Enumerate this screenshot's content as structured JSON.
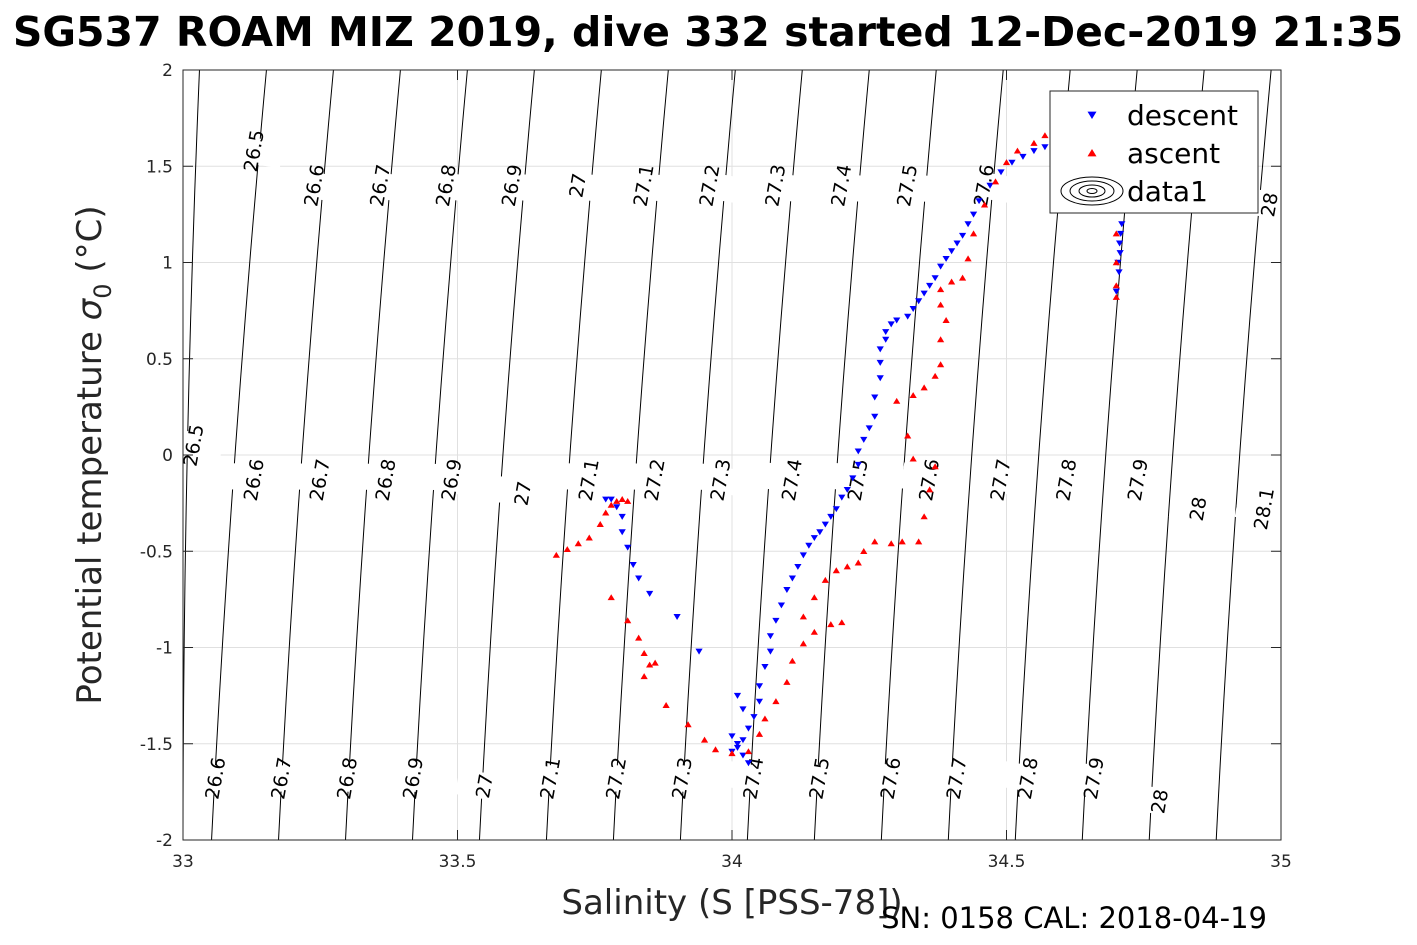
{
  "chart_data": {
    "type": "scatter",
    "title": "SG537 ROAM MIZ 2019, dive 332 started 12-Dec-2019 21:35",
    "xlabel": "Salinity (S [PSS-78])",
    "ylabel_main": "Potential temperature ",
    "ylabel_sigma": "σ",
    "ylabel_sub": "0",
    "ylabel_unit": " (°C)",
    "xlim": [
      33,
      35
    ],
    "ylim": [
      -2,
      2
    ],
    "xticks": [
      33,
      33.5,
      34,
      34.5,
      35
    ],
    "xtick_labels": [
      "33",
      "33.5",
      "34",
      "34.5",
      "35"
    ],
    "yticks": [
      -2,
      -1.5,
      -1,
      -0.5,
      0,
      0.5,
      1,
      1.5,
      2
    ],
    "ytick_labels": [
      "-2",
      "-1.5",
      "-1",
      "-0.5",
      "0",
      "0.5",
      "1",
      "1.5",
      "2"
    ],
    "grid": true,
    "legend_position": "top-right",
    "footer": "SN: 0158  CAL: 2018-04-19",
    "colors": {
      "descent": "#0000ff",
      "ascent": "#ff0000",
      "isopycnal": "#000000",
      "grid": "#e0e0e0"
    },
    "legend": [
      {
        "label": "descent",
        "marker": "triangle-down",
        "color": "#0000ff"
      },
      {
        "label": "ascent",
        "marker": "triangle-up",
        "color": "#ff0000"
      },
      {
        "label": "data1",
        "marker": "contour-icon",
        "color": "#000000"
      }
    ],
    "isopycnals": [
      {
        "sigma": 26.5,
        "x_at_top": 33.03,
        "x_at_bottom": 33.0
      },
      {
        "sigma": 26.6,
        "x_at_top": 33.152,
        "x_at_bottom": 33.052
      },
      {
        "sigma": 26.7,
        "x_at_top": 33.274,
        "x_at_bottom": 33.174
      },
      {
        "sigma": 26.8,
        "x_at_top": 33.396,
        "x_at_bottom": 33.296
      },
      {
        "sigma": 26.9,
        "x_at_top": 33.518,
        "x_at_bottom": 33.418
      },
      {
        "sigma": 27.0,
        "x_at_top": 33.64,
        "x_at_bottom": 33.54
      },
      {
        "sigma": 27.1,
        "x_at_top": 33.762,
        "x_at_bottom": 33.662
      },
      {
        "sigma": 27.2,
        "x_at_top": 33.884,
        "x_at_bottom": 33.784
      },
      {
        "sigma": 27.3,
        "x_at_top": 34.006,
        "x_at_bottom": 33.906
      },
      {
        "sigma": 27.4,
        "x_at_top": 34.128,
        "x_at_bottom": 34.028
      },
      {
        "sigma": 27.5,
        "x_at_top": 34.25,
        "x_at_bottom": 34.15
      },
      {
        "sigma": 27.6,
        "x_at_top": 34.372,
        "x_at_bottom": 34.272
      },
      {
        "sigma": 27.7,
        "x_at_top": 34.494,
        "x_at_bottom": 34.394
      },
      {
        "sigma": 27.8,
        "x_at_top": 34.616,
        "x_at_bottom": 34.516
      },
      {
        "sigma": 27.9,
        "x_at_top": 34.738,
        "x_at_bottom": 34.638
      },
      {
        "sigma": 28.0,
        "x_at_top": 34.86,
        "x_at_bottom": 34.76
      },
      {
        "sigma": 28.1,
        "x_at_top": 34.982,
        "x_at_bottom": 34.882
      }
    ],
    "isopycnal_labels": [
      {
        "text": "26.5",
        "x": 33.13,
        "y": 1.58
      },
      {
        "text": "26.6",
        "x": 33.24,
        "y": 1.4
      },
      {
        "text": "26.7",
        "x": 33.36,
        "y": 1.4
      },
      {
        "text": "26.8",
        "x": 33.48,
        "y": 1.4
      },
      {
        "text": "26.9",
        "x": 33.6,
        "y": 1.4
      },
      {
        "text": "27",
        "x": 33.72,
        "y": 1.4
      },
      {
        "text": "27.1",
        "x": 33.84,
        "y": 1.4
      },
      {
        "text": "27.2",
        "x": 33.96,
        "y": 1.4
      },
      {
        "text": "27.3",
        "x": 34.08,
        "y": 1.4
      },
      {
        "text": "27.4",
        "x": 34.2,
        "y": 1.4
      },
      {
        "text": "27.5",
        "x": 34.32,
        "y": 1.4
      },
      {
        "text": "27.6",
        "x": 34.46,
        "y": 1.4
      },
      {
        "text": "28",
        "x": 34.98,
        "y": 1.3
      },
      {
        "text": "26.5",
        "x": 33.02,
        "y": 0.05
      },
      {
        "text": "26.6",
        "x": 33.13,
        "y": -0.13
      },
      {
        "text": "26.7",
        "x": 33.25,
        "y": -0.13
      },
      {
        "text": "26.8",
        "x": 33.37,
        "y": -0.13
      },
      {
        "text": "26.9",
        "x": 33.49,
        "y": -0.13
      },
      {
        "text": "27",
        "x": 33.62,
        "y": -0.2
      },
      {
        "text": "27.1",
        "x": 33.74,
        "y": -0.13
      },
      {
        "text": "27.2",
        "x": 33.86,
        "y": -0.13
      },
      {
        "text": "27.3",
        "x": 33.98,
        "y": -0.13
      },
      {
        "text": "27.4",
        "x": 34.11,
        "y": -0.13
      },
      {
        "text": "27.5",
        "x": 34.23,
        "y": -0.13
      },
      {
        "text": "27.6",
        "x": 34.36,
        "y": -0.13
      },
      {
        "text": "27.7",
        "x": 34.49,
        "y": -0.13
      },
      {
        "text": "27.8",
        "x": 34.61,
        "y": -0.13
      },
      {
        "text": "27.9",
        "x": 34.74,
        "y": -0.13
      },
      {
        "text": "28",
        "x": 34.85,
        "y": -0.28
      },
      {
        "text": "28.1",
        "x": 34.97,
        "y": -0.28
      },
      {
        "text": "26.6",
        "x": 33.06,
        "y": -1.68
      },
      {
        "text": "26.7",
        "x": 33.18,
        "y": -1.68
      },
      {
        "text": "26.8",
        "x": 33.3,
        "y": -1.68
      },
      {
        "text": "26.9",
        "x": 33.42,
        "y": -1.68
      },
      {
        "text": "27",
        "x": 33.55,
        "y": -1.72
      },
      {
        "text": "27.1",
        "x": 33.67,
        "y": -1.68
      },
      {
        "text": "27.2",
        "x": 33.79,
        "y": -1.68
      },
      {
        "text": "27.3",
        "x": 33.91,
        "y": -1.68
      },
      {
        "text": "27.4",
        "x": 34.04,
        "y": -1.68
      },
      {
        "text": "27.5",
        "x": 34.16,
        "y": -1.68
      },
      {
        "text": "27.6",
        "x": 34.29,
        "y": -1.68
      },
      {
        "text": "27.7",
        "x": 34.41,
        "y": -1.68
      },
      {
        "text": "27.8",
        "x": 34.54,
        "y": -1.68
      },
      {
        "text": "27.9",
        "x": 34.66,
        "y": -1.68
      },
      {
        "text": "28",
        "x": 34.78,
        "y": -1.8
      }
    ],
    "series": [
      {
        "name": "descent",
        "marker": "triangle-down",
        "color": "#0000ff",
        "points": [
          [
            34.7,
            0.85
          ],
          [
            34.705,
            0.95
          ],
          [
            34.707,
            1.05
          ],
          [
            34.708,
            1.15
          ],
          [
            34.71,
            1.2
          ],
          [
            34.706,
            1.1
          ],
          [
            34.703,
            1.0
          ],
          [
            34.59,
            1.58
          ],
          [
            34.57,
            1.6
          ],
          [
            34.55,
            1.58
          ],
          [
            34.53,
            1.55
          ],
          [
            34.51,
            1.52
          ],
          [
            34.49,
            1.47
          ],
          [
            34.47,
            1.4
          ],
          [
            34.45,
            1.32
          ],
          [
            34.44,
            1.25
          ],
          [
            34.43,
            1.2
          ],
          [
            34.42,
            1.14
          ],
          [
            34.41,
            1.1
          ],
          [
            34.4,
            1.06
          ],
          [
            34.39,
            1.02
          ],
          [
            34.38,
            0.98
          ],
          [
            34.37,
            0.92
          ],
          [
            34.36,
            0.88
          ],
          [
            34.35,
            0.84
          ],
          [
            34.34,
            0.8
          ],
          [
            34.33,
            0.76
          ],
          [
            34.32,
            0.72
          ],
          [
            34.3,
            0.7
          ],
          [
            34.29,
            0.68
          ],
          [
            34.28,
            0.64
          ],
          [
            34.28,
            0.6
          ],
          [
            34.27,
            0.55
          ],
          [
            34.27,
            0.48
          ],
          [
            34.27,
            0.4
          ],
          [
            34.26,
            0.3
          ],
          [
            34.26,
            0.2
          ],
          [
            34.25,
            0.14
          ],
          [
            34.24,
            0.08
          ],
          [
            34.23,
            0.02
          ],
          [
            34.23,
            -0.05
          ],
          [
            34.22,
            -0.12
          ],
          [
            34.21,
            -0.18
          ],
          [
            34.2,
            -0.22
          ],
          [
            34.19,
            -0.28
          ],
          [
            34.18,
            -0.32
          ],
          [
            34.17,
            -0.36
          ],
          [
            34.16,
            -0.4
          ],
          [
            34.15,
            -0.43
          ],
          [
            34.14,
            -0.47
          ],
          [
            34.13,
            -0.52
          ],
          [
            34.12,
            -0.58
          ],
          [
            34.11,
            -0.64
          ],
          [
            34.1,
            -0.7
          ],
          [
            34.09,
            -0.78
          ],
          [
            34.08,
            -0.86
          ],
          [
            34.07,
            -0.94
          ],
          [
            34.07,
            -1.02
          ],
          [
            34.06,
            -1.1
          ],
          [
            34.05,
            -1.2
          ],
          [
            34.05,
            -1.28
          ],
          [
            34.04,
            -1.36
          ],
          [
            34.03,
            -1.42
          ],
          [
            34.02,
            -1.48
          ],
          [
            34.01,
            -1.52
          ],
          [
            34.0,
            -1.54
          ],
          [
            34.02,
            -1.56
          ],
          [
            34.03,
            -1.6
          ],
          [
            34.01,
            -1.5
          ],
          [
            34.0,
            -1.46
          ],
          [
            34.02,
            -1.32
          ],
          [
            34.01,
            -1.25
          ],
          [
            33.94,
            -1.02
          ],
          [
            33.9,
            -0.84
          ],
          [
            33.85,
            -0.72
          ],
          [
            33.83,
            -0.64
          ],
          [
            33.82,
            -0.57
          ],
          [
            33.81,
            -0.48
          ],
          [
            33.8,
            -0.4
          ],
          [
            33.8,
            -0.32
          ],
          [
            33.79,
            -0.27
          ],
          [
            33.78,
            -0.23
          ],
          [
            33.77,
            -0.23
          ]
        ]
      },
      {
        "name": "ascent",
        "marker": "triangle-up",
        "color": "#ff0000",
        "points": [
          [
            33.68,
            -0.52
          ],
          [
            33.7,
            -0.49
          ],
          [
            33.72,
            -0.46
          ],
          [
            33.74,
            -0.43
          ],
          [
            33.76,
            -0.36
          ],
          [
            33.77,
            -0.3
          ],
          [
            33.78,
            -0.26
          ],
          [
            33.79,
            -0.24
          ],
          [
            33.8,
            -0.23
          ],
          [
            33.81,
            -0.24
          ],
          [
            33.78,
            -0.74
          ],
          [
            33.81,
            -0.86
          ],
          [
            33.83,
            -0.95
          ],
          [
            33.84,
            -1.03
          ],
          [
            33.85,
            -1.09
          ],
          [
            33.86,
            -1.08
          ],
          [
            33.84,
            -1.15
          ],
          [
            33.88,
            -1.3
          ],
          [
            33.92,
            -1.4
          ],
          [
            33.95,
            -1.48
          ],
          [
            33.97,
            -1.53
          ],
          [
            34.0,
            -1.55
          ],
          [
            34.03,
            -1.54
          ],
          [
            34.05,
            -1.45
          ],
          [
            34.06,
            -1.37
          ],
          [
            34.08,
            -1.28
          ],
          [
            34.1,
            -1.18
          ],
          [
            34.11,
            -1.07
          ],
          [
            34.13,
            -0.98
          ],
          [
            34.15,
            -0.92
          ],
          [
            34.18,
            -0.88
          ],
          [
            34.2,
            -0.87
          ],
          [
            34.13,
            -0.84
          ],
          [
            34.15,
            -0.74
          ],
          [
            34.17,
            -0.65
          ],
          [
            34.19,
            -0.6
          ],
          [
            34.21,
            -0.58
          ],
          [
            34.23,
            -0.56
          ],
          [
            34.24,
            -0.5
          ],
          [
            34.26,
            -0.45
          ],
          [
            34.29,
            -0.46
          ],
          [
            34.31,
            -0.45
          ],
          [
            34.34,
            -0.45
          ],
          [
            34.35,
            -0.32
          ],
          [
            34.36,
            -0.18
          ],
          [
            34.37,
            -0.06
          ],
          [
            34.33,
            -0.02
          ],
          [
            34.32,
            0.1
          ],
          [
            34.3,
            0.28
          ],
          [
            34.33,
            0.31
          ],
          [
            34.35,
            0.35
          ],
          [
            34.37,
            0.41
          ],
          [
            34.38,
            0.47
          ],
          [
            34.38,
            0.6
          ],
          [
            34.39,
            0.7
          ],
          [
            34.38,
            0.78
          ],
          [
            34.38,
            0.86
          ],
          [
            34.4,
            0.9
          ],
          [
            34.42,
            0.92
          ],
          [
            34.43,
            1.02
          ],
          [
            34.44,
            1.15
          ],
          [
            34.46,
            1.3
          ],
          [
            34.48,
            1.42
          ],
          [
            34.5,
            1.52
          ],
          [
            34.52,
            1.58
          ],
          [
            34.55,
            1.62
          ],
          [
            34.57,
            1.66
          ],
          [
            34.6,
            1.62
          ],
          [
            34.63,
            1.55
          ],
          [
            34.66,
            1.45
          ],
          [
            34.69,
            1.3
          ],
          [
            34.7,
            1.15
          ],
          [
            34.7,
            1.0
          ],
          [
            34.7,
            0.88
          ],
          [
            34.7,
            0.82
          ]
        ]
      }
    ]
  }
}
